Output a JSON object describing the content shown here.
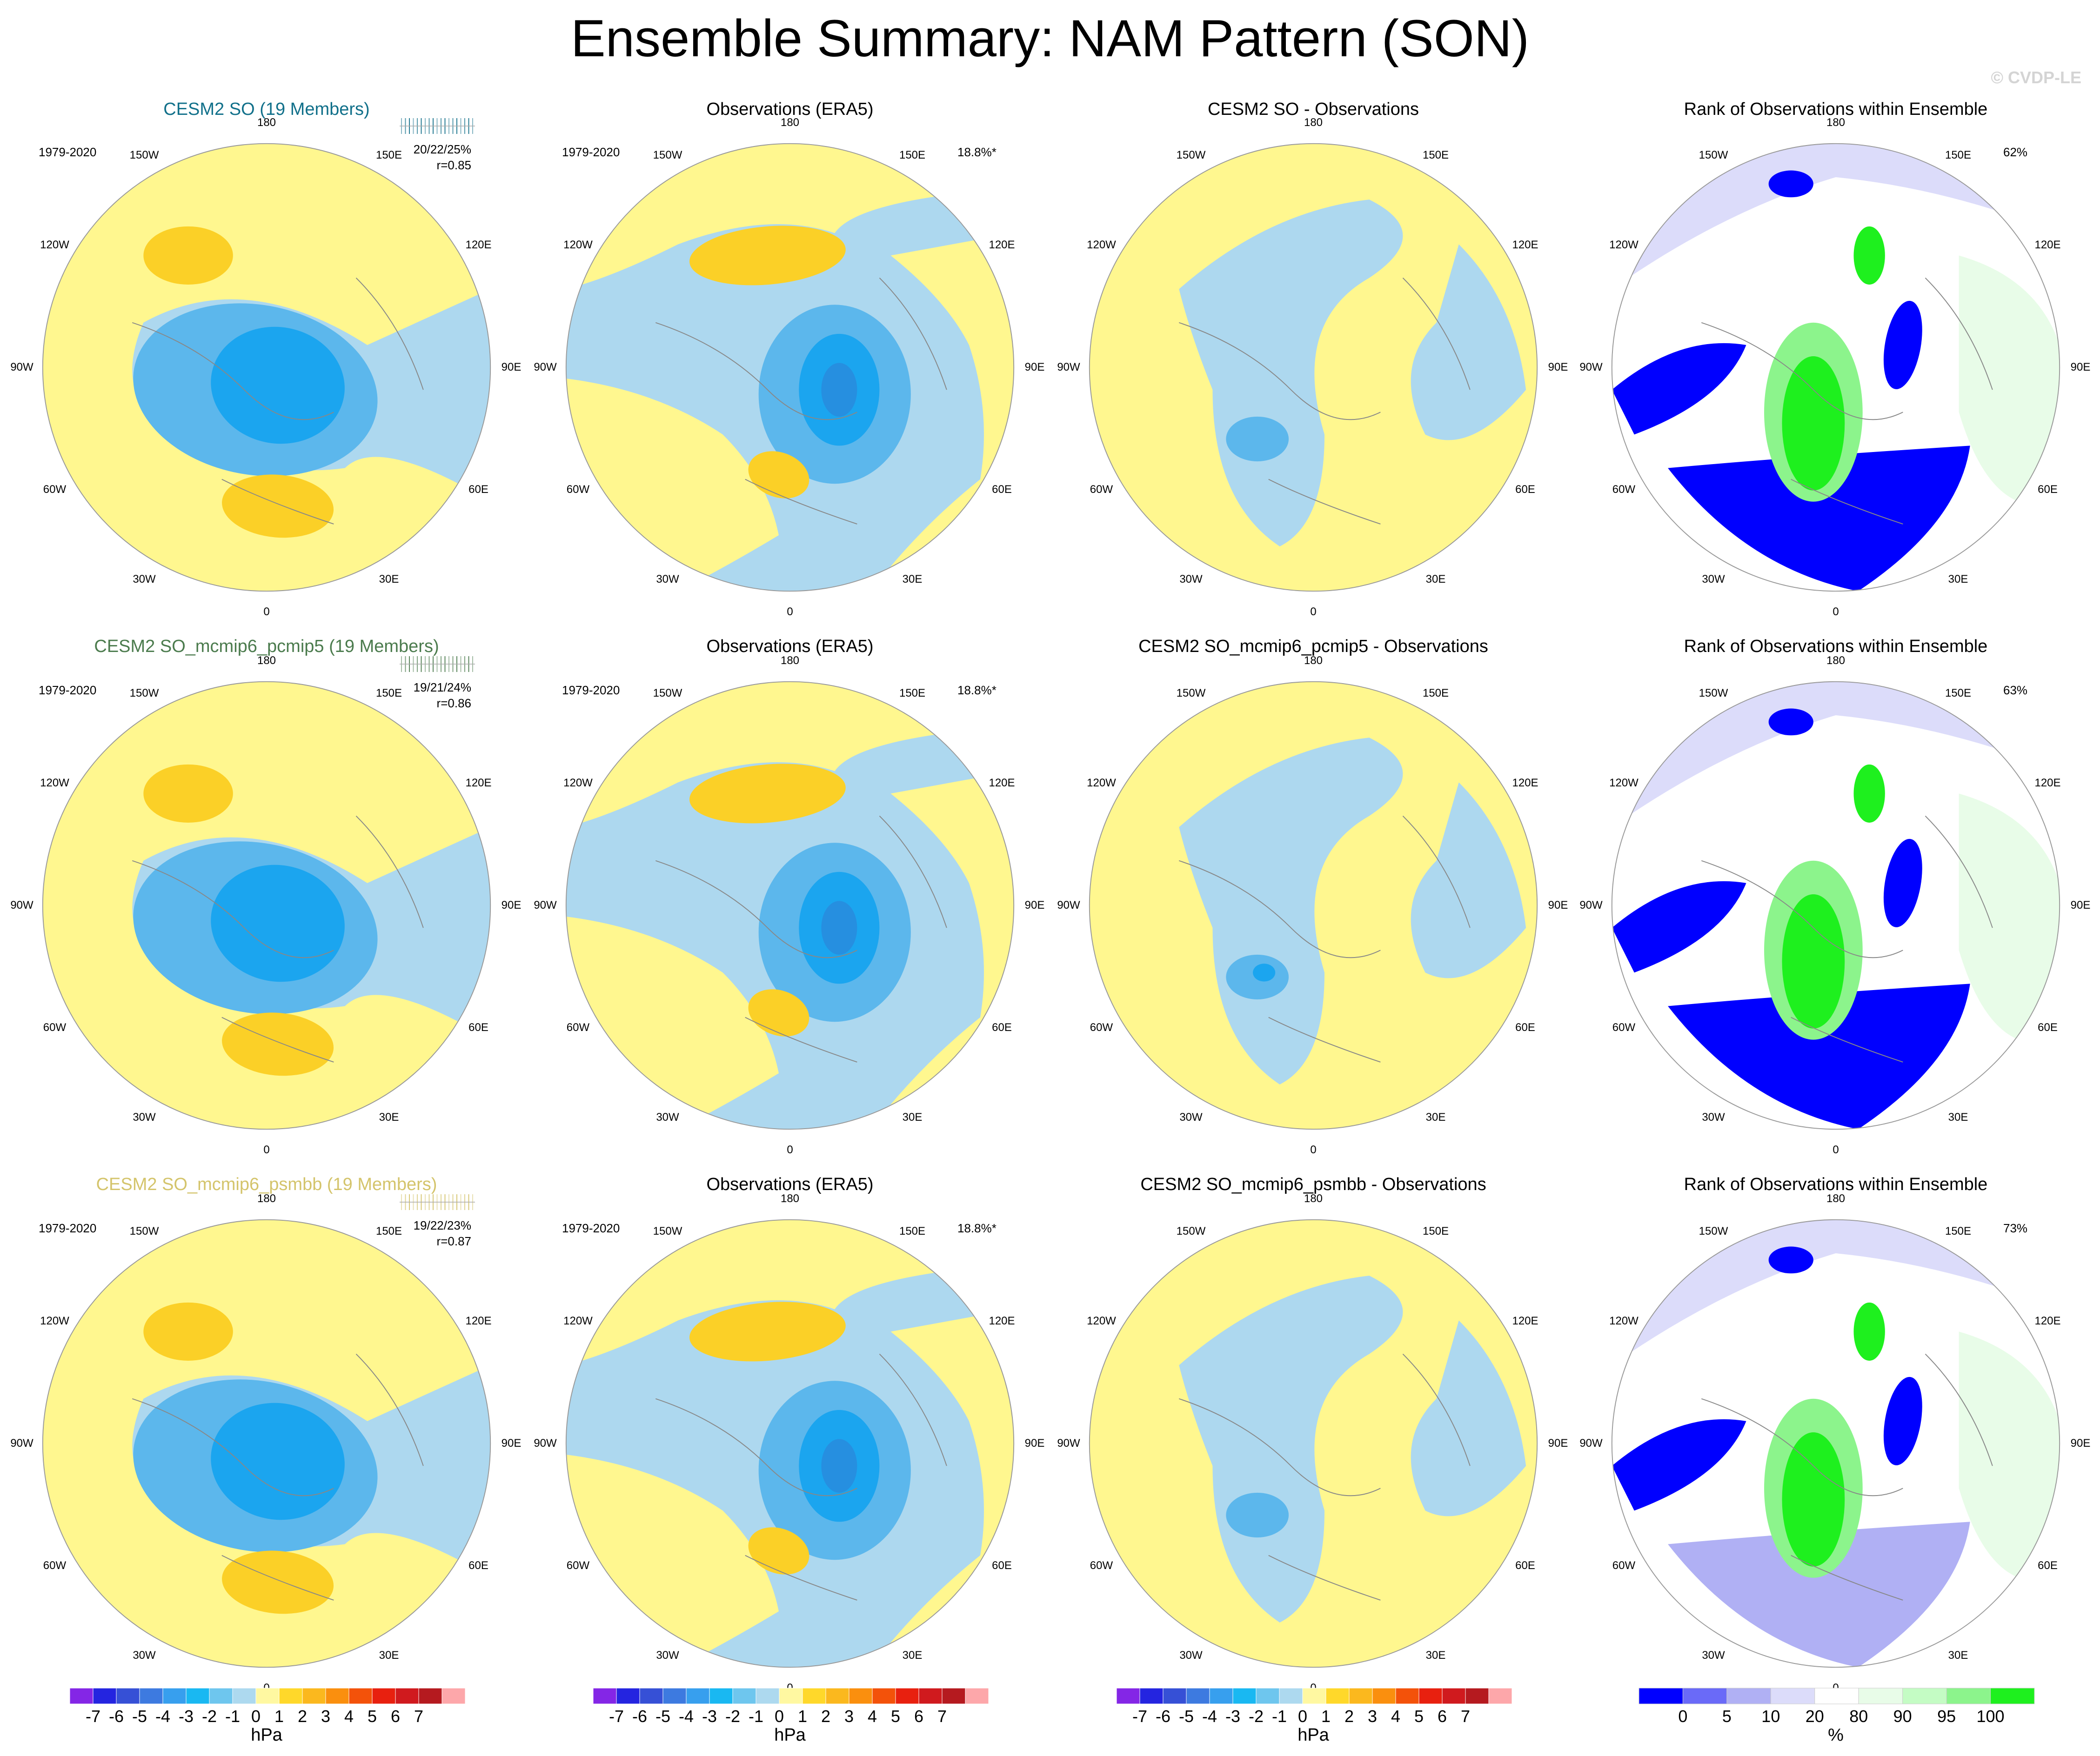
{
  "figure": {
    "title": "Ensemble Summary: NAM Pattern (SON)",
    "watermark": "© CVDP-LE"
  },
  "colors": {
    "ensemble_titles": [
      "#11708a",
      "#4b7b4d",
      "#d4c46b"
    ],
    "hpa_scale": [
      "#8426e6",
      "#2424e0",
      "#3650d6",
      "#3d7ae0",
      "#379fee",
      "#19b8f2",
      "#6ec6ee",
      "#add9ef",
      "#fff8a1",
      "#ffd82a",
      "#fbb81e",
      "#fa8f0e",
      "#f3520a",
      "#e8200f",
      "#d01a1e",
      "#b51a1f",
      "#fda7aa"
    ],
    "rank_scale": [
      "#0000ff",
      "#6a6af8",
      "#b0b0f4",
      "#dcdcfa",
      "#ffffff",
      "#e8fce8",
      "#c4fcc4",
      "#8cf48c",
      "#1ef01e"
    ],
    "panel_series": [
      {
        "yellow": "#fff78f",
        "lblue": "#add8ef",
        "mblue": "#5cb7ec",
        "dblue": "#1ba5ef",
        "xblue": "#268fe0",
        "orange": "#fbd027"
      }
    ]
  },
  "lon_labels": [
    "180",
    "150E",
    "120E",
    "90E",
    "60E",
    "30E",
    "0",
    "30W",
    "60W",
    "90W",
    "120W",
    "150W"
  ],
  "rows": [
    {
      "ensemble": {
        "title": "CESM2 SO (19 Members)",
        "period": "1979-2020",
        "stat": "20/22/25%",
        "corr": "r=0.85"
      },
      "obs": {
        "title": "Observations (ERA5)",
        "period": "1979-2020",
        "pct": "18.8%*"
      },
      "diff": {
        "title": "CESM2 SO - Observations"
      },
      "rank": {
        "title": "Rank of Observations within Ensemble",
        "pct": "62%"
      }
    },
    {
      "ensemble": {
        "title": "CESM2 SO_mcmip6_pcmip5 (19 Members)",
        "period": "1979-2020",
        "stat": "19/21/24%",
        "corr": "r=0.86"
      },
      "obs": {
        "title": "Observations (ERA5)",
        "period": "1979-2020",
        "pct": "18.8%*"
      },
      "diff": {
        "title": "CESM2 SO_mcmip6_pcmip5 - Observations"
      },
      "rank": {
        "title": "Rank of Observations within Ensemble",
        "pct": "63%"
      }
    },
    {
      "ensemble": {
        "title": "CESM2 SO_mcmip6_psmbb (19 Members)",
        "period": "1979-2020",
        "stat": "19/22/23%",
        "corr": "r=0.87"
      },
      "obs": {
        "title": "Observations (ERA5)",
        "period": "1979-2020",
        "pct": "18.8%*"
      },
      "diff": {
        "title": "CESM2 SO_mcmip6_psmbb - Observations"
      },
      "rank": {
        "title": "Rank of Observations within Ensemble",
        "pct": "73%"
      }
    }
  ],
  "colorbars": {
    "hpa": {
      "ticks": [
        "-7",
        "-6",
        "-5",
        "-4",
        "-3",
        "-2",
        "-1",
        "0",
        "1",
        "2",
        "3",
        "4",
        "5",
        "6",
        "7"
      ],
      "unit": "hPa"
    },
    "rank": {
      "ticks": [
        "0",
        "5",
        "10",
        "20",
        "80",
        "90",
        "95",
        "100"
      ],
      "unit": "%"
    }
  }
}
